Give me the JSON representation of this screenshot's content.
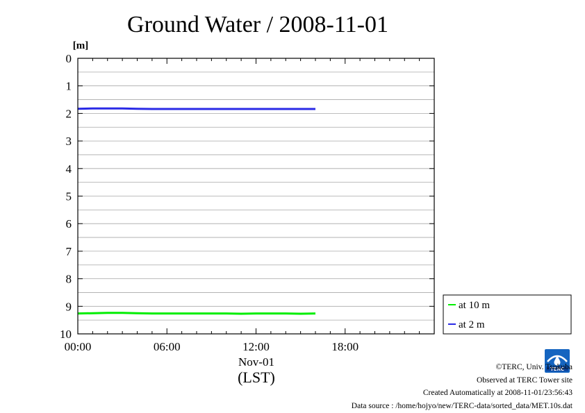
{
  "chart_data": {
    "type": "line",
    "title": "Ground Water / 2008-11-01",
    "ylabel": "[m]",
    "xlabel": "Nov-01",
    "xsublabel": "(LST)",
    "x_ticks": [
      "00:00",
      "06:00",
      "12:00",
      "18:00"
    ],
    "x_tick_hours": [
      0,
      6,
      12,
      18
    ],
    "xlim_hours": [
      0,
      24
    ],
    "y_ticks": [
      "0",
      "1",
      "2",
      "3",
      "4",
      "5",
      "6",
      "7",
      "8",
      "9",
      "10"
    ],
    "ylim": [
      0,
      10
    ],
    "y_inverted": true,
    "grid": true,
    "legend_position": "right",
    "series": [
      {
        "name": "at 10 m",
        "color": "#00ee00",
        "x_hours": [
          0,
          1,
          2,
          3,
          4,
          5,
          6,
          7,
          8,
          9,
          10,
          11,
          12,
          13,
          14,
          15,
          16
        ],
        "values": [
          9.26,
          9.25,
          9.24,
          9.24,
          9.25,
          9.26,
          9.26,
          9.26,
          9.26,
          9.26,
          9.26,
          9.27,
          9.26,
          9.26,
          9.26,
          9.27,
          9.26
        ]
      },
      {
        "name": "at 2 m",
        "color": "#2a2ae6",
        "x_hours": [
          0,
          1,
          2,
          3,
          4,
          5,
          6,
          7,
          8,
          9,
          10,
          11,
          12,
          13,
          14,
          15,
          16
        ],
        "values": [
          1.83,
          1.82,
          1.82,
          1.82,
          1.83,
          1.84,
          1.84,
          1.84,
          1.84,
          1.84,
          1.84,
          1.84,
          1.84,
          1.84,
          1.84,
          1.84,
          1.84
        ]
      }
    ]
  },
  "footer": {
    "copyright": "©TERC, Univ. Tsukuba",
    "observed": "Observed at TERC Tower site",
    "created": "Created Automatically at 2008-11-01/23:56:43",
    "source": "Data source : /home/hojyo/new/TERC-data/sorted_data/MET.10s.dat"
  },
  "logo": {
    "text": "TERC",
    "color": "#1565c0"
  }
}
